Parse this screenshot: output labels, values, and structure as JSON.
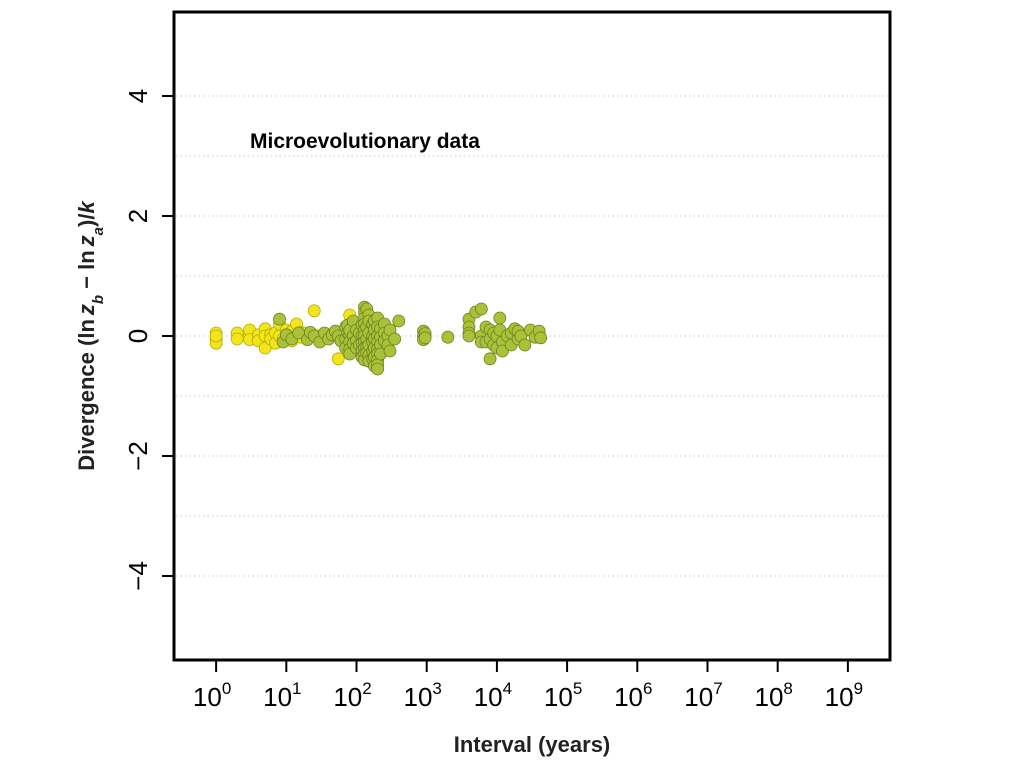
{
  "chart_data": {
    "type": "scatter",
    "x_scale": "log10",
    "xlim_exponent": [
      -0.6,
      9.6
    ],
    "ylim": [
      -5.4,
      5.4
    ],
    "grid": true,
    "xlabel": "Interval (years)",
    "ylabel": "Divergence (ln z̄b − ln z̄a)/k",
    "ylabel_parts": {
      "prefix": "Divergence (",
      "ln1": "ln",
      "z1": "z",
      "sub1": "b",
      "minus": " − ",
      "ln2": "ln",
      "z2": "z",
      "sub2": "a",
      "suffix": ")/",
      "k": "k"
    },
    "x_ticks": [
      {
        "base": "10",
        "exp": "0"
      },
      {
        "base": "10",
        "exp": "1"
      },
      {
        "base": "10",
        "exp": "2"
      },
      {
        "base": "10",
        "exp": "3"
      },
      {
        "base": "10",
        "exp": "4"
      },
      {
        "base": "10",
        "exp": "5"
      },
      {
        "base": "10",
        "exp": "6"
      },
      {
        "base": "10",
        "exp": "7"
      },
      {
        "base": "10",
        "exp": "8"
      },
      {
        "base": "10",
        "exp": "9"
      }
    ],
    "y_ticks": [
      {
        "value": 4,
        "label": "4"
      },
      {
        "value": 2,
        "label": "2"
      },
      {
        "value": 0,
        "label": "0"
      },
      {
        "value": -2,
        "label": "−2"
      },
      {
        "value": -4,
        "label": "−4"
      }
    ],
    "y_gridlines": [
      4,
      3,
      2,
      1,
      0,
      -1,
      -2,
      -3,
      -4
    ],
    "annotations": [
      {
        "text": "Microevolutionary data"
      }
    ],
    "colors": {
      "yellow": "#f2e51e",
      "yellow_edge": "#b5a900",
      "green": "#a9c23a",
      "green_edge": "#6e7f1e"
    },
    "series": [
      {
        "color": "yellow",
        "points": [
          [
            1,
            0.05
          ],
          [
            1,
            -0.05
          ],
          [
            1,
            -0.12
          ],
          [
            1,
            0.0
          ],
          [
            2,
            0.05
          ],
          [
            2,
            -0.05
          ],
          [
            3,
            0.0
          ],
          [
            3,
            0.1
          ],
          [
            3,
            -0.06
          ],
          [
            4,
            0.02
          ],
          [
            4,
            -0.08
          ],
          [
            5,
            -0.2
          ],
          [
            5,
            0.12
          ],
          [
            5,
            0.0
          ],
          [
            6,
            0.02
          ],
          [
            6,
            -0.05
          ],
          [
            7,
            0.05
          ],
          [
            7,
            -0.12
          ],
          [
            8,
            0.2
          ],
          [
            8,
            0.0
          ],
          [
            9,
            -0.05
          ],
          [
            10,
            0.1
          ],
          [
            10,
            -0.05
          ],
          [
            11,
            0.02
          ],
          [
            12,
            0.08
          ],
          [
            12,
            -0.08
          ],
          [
            14,
            0.2
          ],
          [
            14,
            0.0
          ],
          [
            16,
            -0.02
          ],
          [
            16,
            0.06
          ],
          [
            18,
            0.05
          ],
          [
            20,
            0.0
          ],
          [
            25,
            0.42
          ],
          [
            28,
            0.0
          ],
          [
            30,
            -0.08
          ],
          [
            55,
            -0.38
          ],
          [
            80,
            0.35
          ],
          [
            90,
            -0.05
          ],
          [
            100,
            0.2
          ]
        ]
      },
      {
        "color": "green",
        "points": [
          [
            8,
            0.28
          ],
          [
            9,
            -0.1
          ],
          [
            10,
            0.02
          ],
          [
            12,
            -0.05
          ],
          [
            15,
            0.05
          ],
          [
            20,
            -0.06
          ],
          [
            22,
            0.06
          ],
          [
            25,
            0.0
          ],
          [
            30,
            -0.1
          ],
          [
            35,
            0.05
          ],
          [
            40,
            -0.05
          ],
          [
            45,
            0.02
          ],
          [
            50,
            0.08
          ],
          [
            55,
            0.0
          ],
          [
            60,
            -0.08
          ],
          [
            70,
            0.15
          ],
          [
            70,
            -0.05
          ],
          [
            70,
            -0.2
          ],
          [
            75,
            0.05
          ],
          [
            75,
            0.18
          ],
          [
            80,
            0.02
          ],
          [
            80,
            -0.1
          ],
          [
            80,
            -0.22
          ],
          [
            80,
            -0.3
          ],
          [
            80,
            0.1
          ],
          [
            90,
            0.25
          ],
          [
            90,
            0.0
          ],
          [
            90,
            -0.12
          ],
          [
            100,
            0.1
          ],
          [
            100,
            -0.08
          ],
          [
            100,
            -0.2
          ],
          [
            110,
            0.05
          ],
          [
            110,
            -0.15
          ],
          [
            120,
            0.18
          ],
          [
            120,
            0.0
          ],
          [
            120,
            -0.12
          ],
          [
            120,
            -0.25
          ],
          [
            120,
            -0.35
          ],
          [
            130,
            0.48
          ],
          [
            130,
            0.4
          ],
          [
            130,
            0.3
          ],
          [
            130,
            0.2
          ],
          [
            130,
            0.1
          ],
          [
            130,
            0.0
          ],
          [
            130,
            -0.1
          ],
          [
            130,
            -0.2
          ],
          [
            130,
            -0.3
          ],
          [
            130,
            -0.4
          ],
          [
            140,
            0.45
          ],
          [
            140,
            0.15
          ],
          [
            140,
            -0.05
          ],
          [
            140,
            -0.18
          ],
          [
            140,
            -0.28
          ],
          [
            150,
            0.35
          ],
          [
            150,
            0.25
          ],
          [
            150,
            0.05
          ],
          [
            150,
            -0.15
          ],
          [
            150,
            -0.32
          ],
          [
            150,
            -0.42
          ],
          [
            170,
            0.2
          ],
          [
            170,
            0.0
          ],
          [
            170,
            -0.1
          ],
          [
            170,
            -0.25
          ],
          [
            170,
            -0.38
          ],
          [
            180,
            0.25
          ],
          [
            180,
            0.1
          ],
          [
            180,
            -0.05
          ],
          [
            180,
            -0.2
          ],
          [
            180,
            -0.35
          ],
          [
            180,
            -0.5
          ],
          [
            200,
            0.3
          ],
          [
            200,
            0.15
          ],
          [
            200,
            0.0
          ],
          [
            200,
            -0.1
          ],
          [
            200,
            -0.22
          ],
          [
            200,
            -0.3
          ],
          [
            200,
            -0.4
          ],
          [
            200,
            -0.48
          ],
          [
            200,
            -0.55
          ],
          [
            220,
            0.12
          ],
          [
            220,
            -0.02
          ],
          [
            220,
            -0.15
          ],
          [
            220,
            -0.3
          ],
          [
            250,
            0.2
          ],
          [
            250,
            0.05
          ],
          [
            250,
            -0.08
          ],
          [
            280,
            0.0
          ],
          [
            280,
            -0.15
          ],
          [
            300,
            -0.25
          ],
          [
            300,
            0.1
          ],
          [
            350,
            -0.05
          ],
          [
            400,
            0.25
          ],
          [
            900,
            0.08
          ],
          [
            900,
            0.0
          ],
          [
            900,
            -0.06
          ],
          [
            950,
            0.04
          ],
          [
            950,
            -0.03
          ],
          [
            2000,
            -0.02
          ],
          [
            4000,
            0.28
          ],
          [
            4000,
            0.15
          ],
          [
            4000,
            0.05
          ],
          [
            4000,
            0.0
          ],
          [
            5000,
            0.4
          ],
          [
            6000,
            0.0
          ],
          [
            6000,
            -0.1
          ],
          [
            6000,
            0.45
          ],
          [
            7000,
            -0.1
          ],
          [
            7000,
            0.15
          ],
          [
            8000,
            0.1
          ],
          [
            8000,
            -0.05
          ],
          [
            8000,
            -0.38
          ],
          [
            9000,
            -0.15
          ],
          [
            9000,
            0.05
          ],
          [
            10000,
            0.0
          ],
          [
            10000,
            -0.2
          ],
          [
            11000,
            0.3
          ],
          [
            11000,
            0.1
          ],
          [
            12000,
            -0.1
          ],
          [
            12000,
            -0.25
          ],
          [
            14000,
            0.0
          ],
          [
            16000,
            -0.15
          ],
          [
            16000,
            0.05
          ],
          [
            18000,
            0.12
          ],
          [
            20000,
            -0.05
          ],
          [
            20000,
            0.08
          ],
          [
            22000,
            0.0
          ],
          [
            25000,
            -0.15
          ],
          [
            30000,
            0.1
          ],
          [
            35000,
            -0.02
          ],
          [
            40000,
            0.08
          ],
          [
            42000,
            -0.03
          ]
        ]
      }
    ]
  }
}
